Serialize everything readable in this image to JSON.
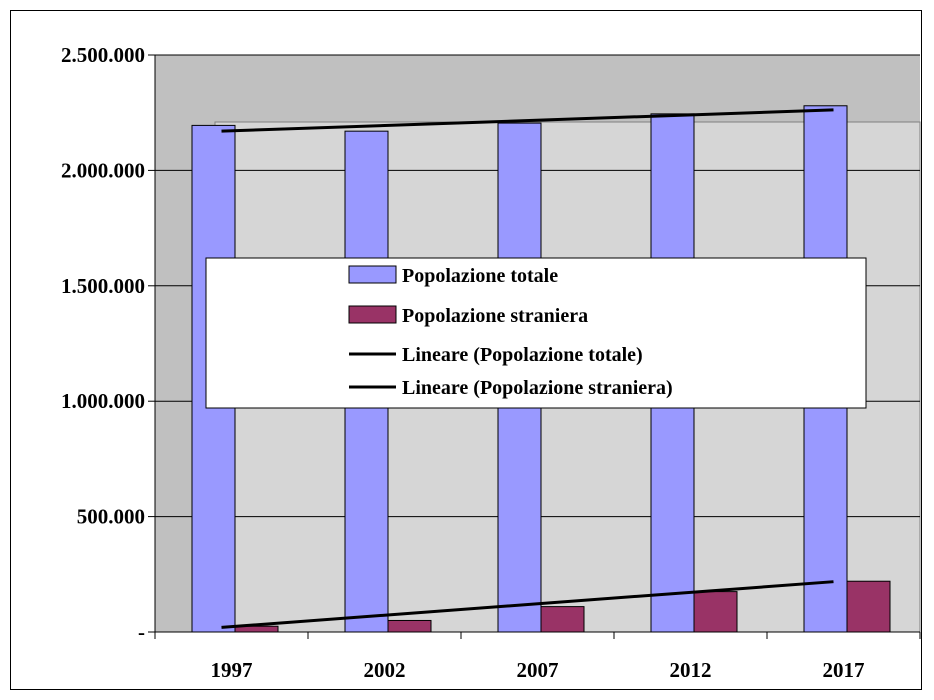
{
  "chart_data": {
    "type": "bar",
    "title": "",
    "xlabel": "",
    "ylabel": "",
    "categories": [
      "1997",
      "2002",
      "2007",
      "2012",
      "2017"
    ],
    "ylim": [
      0,
      2500000
    ],
    "yticks": [
      0,
      500000,
      1000000,
      1500000,
      2000000,
      2500000
    ],
    "ytick_labels": [
      "-",
      "500.000",
      "1.000.000",
      "1.500.000",
      "2.000.000",
      "2.500.000"
    ],
    "grid": "horizontal",
    "series": [
      {
        "name": "Popolazione totale",
        "values": [
          2195000,
          2170000,
          2205000,
          2245000,
          2280000
        ],
        "color": "#9999ff"
      },
      {
        "name": "Popolazione straniera",
        "values": [
          25000,
          50000,
          110000,
          175000,
          220000
        ],
        "color": "#993366"
      }
    ],
    "trendlines": [
      {
        "name": "Lineare (Popolazione totale)",
        "of": "Popolazione totale",
        "start": 2170000,
        "end": 2262000,
        "color": "#000000"
      },
      {
        "name": "Lineare (Popolazione straniera)",
        "of": "Popolazione straniera",
        "start": 20000,
        "end": 218000,
        "color": "#000000"
      }
    ],
    "legend_position": "center",
    "colors": {
      "plot_bg": "#c0c0c0",
      "wall_back": "#d9d9d9"
    }
  }
}
